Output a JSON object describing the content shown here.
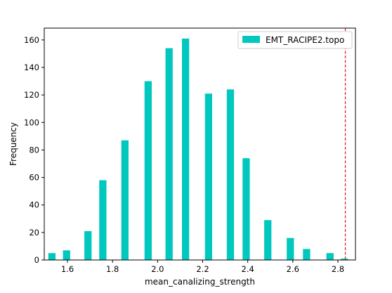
{
  "chart_data": {
    "type": "bar",
    "title": "",
    "xlabel": "mean_canalizing_strength",
    "ylabel": "Frequency",
    "xlim": [
      1.497,
      2.878
    ],
    "ylim": [
      0,
      168.6
    ],
    "xticks": [
      1.6,
      1.8,
      2.0,
      2.2,
      2.4,
      2.6,
      2.8
    ],
    "xtick_labels": [
      "1.6",
      "1.8",
      "2.0",
      "2.2",
      "2.4",
      "2.6",
      "2.8"
    ],
    "yticks": [
      0,
      20,
      40,
      60,
      80,
      100,
      120,
      140,
      160
    ],
    "ytick_labels": [
      "0",
      "20",
      "40",
      "60",
      "80",
      "100",
      "120",
      "140",
      "160"
    ],
    "bar_width": 0.032,
    "series": [
      {
        "name": "EMT_RACIPE2.topo",
        "color": "#00c8be",
        "x": [
          1.531,
          1.596,
          1.691,
          1.757,
          1.855,
          1.958,
          2.051,
          2.124,
          2.226,
          2.323,
          2.393,
          2.489,
          2.589,
          2.661,
          2.765,
          2.829
        ],
        "values": [
          5,
          7,
          21,
          58,
          87,
          130,
          154,
          161,
          121,
          124,
          74,
          29,
          16,
          8,
          5,
          1
        ]
      }
    ],
    "reference_line": {
      "x": 2.833,
      "color": "#e0202a",
      "style": "dashed"
    },
    "legend": {
      "position": "upper right",
      "entries": [
        "EMT_RACIPE2.topo"
      ]
    },
    "grid": false
  }
}
